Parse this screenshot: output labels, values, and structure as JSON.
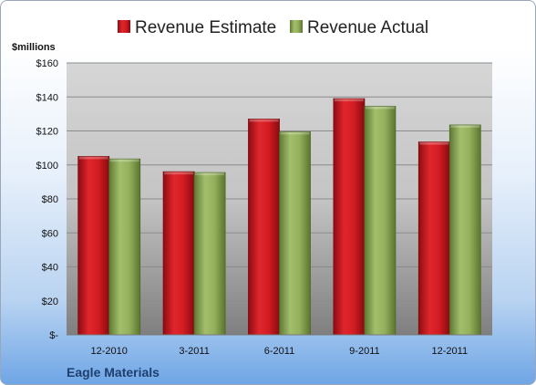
{
  "chart_data": {
    "type": "bar",
    "y_unit_label": "$millions",
    "categories": [
      "12-2010",
      "3-2011",
      "6-2011",
      "9-2011",
      "12-2011"
    ],
    "series": [
      {
        "name": "Revenue Estimate",
        "color": "#c8141c",
        "values": [
          105,
          96,
          127,
          139,
          113.5
        ]
      },
      {
        "name": "Revenue Actual",
        "color": "#8aa656",
        "values": [
          103.5,
          95.5,
          119.5,
          134.5,
          123.5
        ]
      }
    ],
    "y_ticks": [
      "$-",
      "$20",
      "$40",
      "$60",
      "$80",
      "$100",
      "$120",
      "$140",
      "$160"
    ],
    "ylim": [
      0,
      160
    ],
    "grid": true,
    "legend": "top"
  },
  "footer": {
    "company": "Eagle Materials"
  }
}
